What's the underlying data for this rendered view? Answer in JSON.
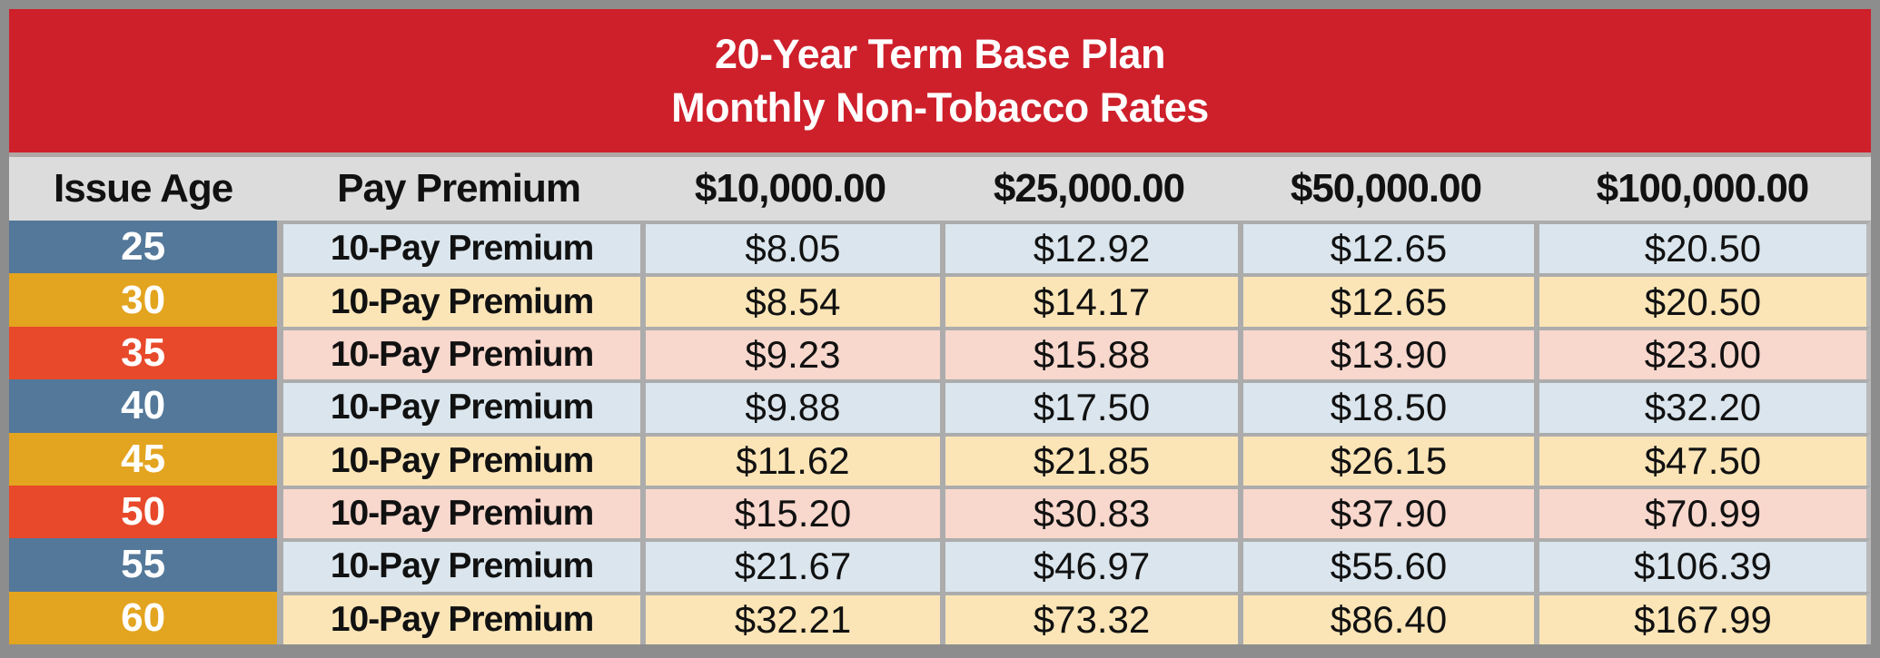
{
  "banner": {
    "line1": "20-Year Term Base Plan",
    "line2": "Monthly Non-Tobacco Rates"
  },
  "chart_data": {
    "type": "table",
    "title": "20-Year Term Base Plan Monthly Non-Tobacco Rates",
    "columns": [
      "Issue Age",
      "Pay Premium",
      "$10,000.00",
      "$25,000.00",
      "$50,000.00",
      "$100,000.00"
    ],
    "face_amounts": [
      10000,
      25000,
      50000,
      100000
    ],
    "rows": [
      {
        "age": "25",
        "premium": "10-Pay Premium",
        "values": [
          "$8.05",
          "$12.92",
          "$12.65",
          "$20.50"
        ]
      },
      {
        "age": "30",
        "premium": "10-Pay Premium",
        "values": [
          "$8.54",
          "$14.17",
          "$12.65",
          "$20.50"
        ]
      },
      {
        "age": "35",
        "premium": "10-Pay Premium",
        "values": [
          "$9.23",
          "$15.88",
          "$13.90",
          "$23.00"
        ]
      },
      {
        "age": "40",
        "premium": "10-Pay Premium",
        "values": [
          "$9.88",
          "$17.50",
          "$18.50",
          "$32.20"
        ]
      },
      {
        "age": "45",
        "premium": "10-Pay Premium",
        "values": [
          "$11.62",
          "$21.85",
          "$26.15",
          "$47.50"
        ]
      },
      {
        "age": "50",
        "premium": "10-Pay Premium",
        "values": [
          "$15.20",
          "$30.83",
          "$37.90",
          "$70.99"
        ]
      },
      {
        "age": "55",
        "premium": "10-Pay Premium",
        "values": [
          "$21.67",
          "$46.97",
          "$55.60",
          "$106.39"
        ]
      },
      {
        "age": "60",
        "premium": "10-Pay Premium",
        "values": [
          "$32.21",
          "$73.32",
          "$86.40",
          "$167.99"
        ]
      }
    ]
  },
  "colors": {
    "banner-red": "#ce202b",
    "frame-gray": "#8d8d8d",
    "gutter-gray": "#acacac",
    "header-gray": "#dcdcdc",
    "strip-gray": "#afa8a4",
    "edge-gray": "#b9b9b9",
    "age-blue": "#53789a",
    "age-amber": "#e3a41f",
    "age-orange": "#e7492a",
    "row-blue": "#dae5ed",
    "row-amber": "#fbe5b7",
    "row-orange": "#f8d7cd"
  }
}
